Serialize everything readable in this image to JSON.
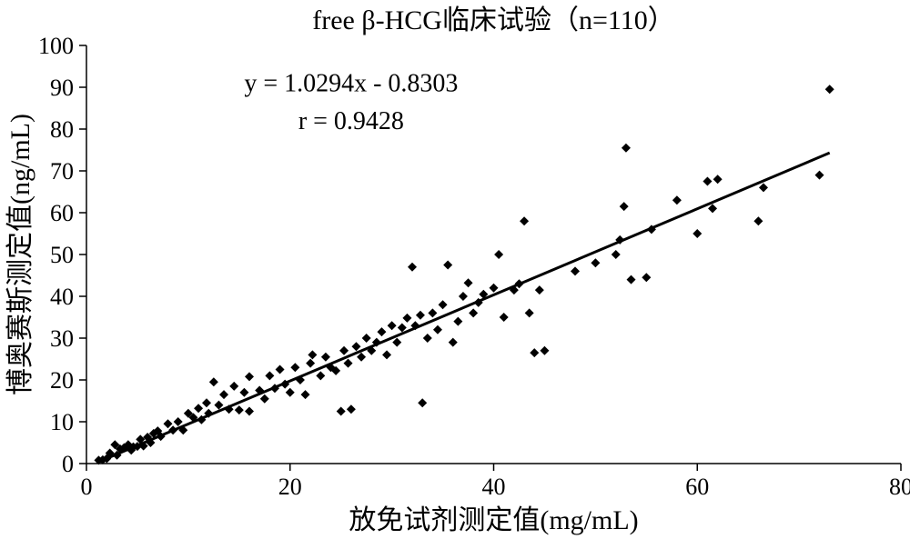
{
  "chart": {
    "type": "scatter",
    "title": "free  β-HCG临床试验（n=110）",
    "title_fontsize": 30,
    "xlabel": "放免试剂测定值(mg/mL)",
    "ylabel": "博奥赛斯测定值(ng/mL)",
    "label_fontsize": 30,
    "tick_fontsize": 26,
    "xlim": [
      0,
      80
    ],
    "ylim": [
      0,
      100
    ],
    "xticks": [
      0,
      20,
      40,
      60,
      80
    ],
    "yticks": [
      0,
      10,
      20,
      30,
      40,
      50,
      60,
      70,
      80,
      90,
      100
    ],
    "background_color": "#ffffff",
    "axis_color": "#000000",
    "marker_color": "#000000",
    "marker_style": "diamond",
    "marker_size": 10,
    "trend_color": "#000000",
    "trend_width": 3,
    "regression": {
      "equation": "y = 1.0294x - 0.8303",
      "r": "r = 0.9428",
      "slope": 1.0294,
      "intercept": -0.8303,
      "x_start": 1,
      "x_end": 73
    },
    "points": [
      [
        1.2,
        0.8
      ],
      [
        1.6,
        0.9
      ],
      [
        2.0,
        1.2
      ],
      [
        2.3,
        2.5
      ],
      [
        2.8,
        4.5
      ],
      [
        3.0,
        2.0
      ],
      [
        3.3,
        3.5
      ],
      [
        3.7,
        3.8
      ],
      [
        4.1,
        4.5
      ],
      [
        4.4,
        3.2
      ],
      [
        4.6,
        4.0
      ],
      [
        5.0,
        4.1
      ],
      [
        5.3,
        5.8
      ],
      [
        5.6,
        4.2
      ],
      [
        6.0,
        6.3
      ],
      [
        6.3,
        5.0
      ],
      [
        6.6,
        7.2
      ],
      [
        7.0,
        7.8
      ],
      [
        7.3,
        6.5
      ],
      [
        8.0,
        9.5
      ],
      [
        8.5,
        8.0
      ],
      [
        9.0,
        10.0
      ],
      [
        9.5,
        8.0
      ],
      [
        10.0,
        12.0
      ],
      [
        10.5,
        11.0
      ],
      [
        11.0,
        13.2
      ],
      [
        11.3,
        10.5
      ],
      [
        11.8,
        14.5
      ],
      [
        12.0,
        12.0
      ],
      [
        12.5,
        19.5
      ],
      [
        13.0,
        14.0
      ],
      [
        13.5,
        16.5
      ],
      [
        14.0,
        13.0
      ],
      [
        14.5,
        18.5
      ],
      [
        15.0,
        12.8
      ],
      [
        15.5,
        17.0
      ],
      [
        16.0,
        12.5
      ],
      [
        16.0,
        20.8
      ],
      [
        17.0,
        17.5
      ],
      [
        17.5,
        15.5
      ],
      [
        18.0,
        21.0
      ],
      [
        18.5,
        18.0
      ],
      [
        19.0,
        22.5
      ],
      [
        19.5,
        19.0
      ],
      [
        20.0,
        17.0
      ],
      [
        20.5,
        23.0
      ],
      [
        21.0,
        20.0
      ],
      [
        21.5,
        16.5
      ],
      [
        22.0,
        24.0
      ],
      [
        22.2,
        26.0
      ],
      [
        23.0,
        21.0
      ],
      [
        23.5,
        25.5
      ],
      [
        24.0,
        23.0
      ],
      [
        24.5,
        22.2
      ],
      [
        25.0,
        12.5
      ],
      [
        25.3,
        27.0
      ],
      [
        25.7,
        24.0
      ],
      [
        26.0,
        13.0
      ],
      [
        26.5,
        28.0
      ],
      [
        27.0,
        25.5
      ],
      [
        27.5,
        30.0
      ],
      [
        28.0,
        27.0
      ],
      [
        28.5,
        29.0
      ],
      [
        29.0,
        31.5
      ],
      [
        29.5,
        26.0
      ],
      [
        30.0,
        33.0
      ],
      [
        30.5,
        29.0
      ],
      [
        31.0,
        32.5
      ],
      [
        31.5,
        34.8
      ],
      [
        32.0,
        47.0
      ],
      [
        32.3,
        33.0
      ],
      [
        32.8,
        35.5
      ],
      [
        33.0,
        14.5
      ],
      [
        33.5,
        30.0
      ],
      [
        34.0,
        36.0
      ],
      [
        34.5,
        32.0
      ],
      [
        35.0,
        38.0
      ],
      [
        35.5,
        47.5
      ],
      [
        36.0,
        29.0
      ],
      [
        36.5,
        34.0
      ],
      [
        37.0,
        40.0
      ],
      [
        37.5,
        43.2
      ],
      [
        38.0,
        36.0
      ],
      [
        38.5,
        38.5
      ],
      [
        39.0,
        40.5
      ],
      [
        40.0,
        42.0
      ],
      [
        40.5,
        50.0
      ],
      [
        41.0,
        35.0
      ],
      [
        42.0,
        41.5
      ],
      [
        42.5,
        43.0
      ],
      [
        43.0,
        58.0
      ],
      [
        43.5,
        36.0
      ],
      [
        44.0,
        26.5
      ],
      [
        44.5,
        41.5
      ],
      [
        45.0,
        27.0
      ],
      [
        48.0,
        46.0
      ],
      [
        50.0,
        48.0
      ],
      [
        52.0,
        50.0
      ],
      [
        52.4,
        53.5
      ],
      [
        52.8,
        61.5
      ],
      [
        53.0,
        75.5
      ],
      [
        53.5,
        44.0
      ],
      [
        55.0,
        44.5
      ],
      [
        55.5,
        56.0
      ],
      [
        58.0,
        63.0
      ],
      [
        60.0,
        55.0
      ],
      [
        61.0,
        67.5
      ],
      [
        61.5,
        61.0
      ],
      [
        62.0,
        68.0
      ],
      [
        66.0,
        58.0
      ],
      [
        66.5,
        66.0
      ],
      [
        72.0,
        69.0
      ],
      [
        73.0,
        89.5
      ]
    ]
  }
}
